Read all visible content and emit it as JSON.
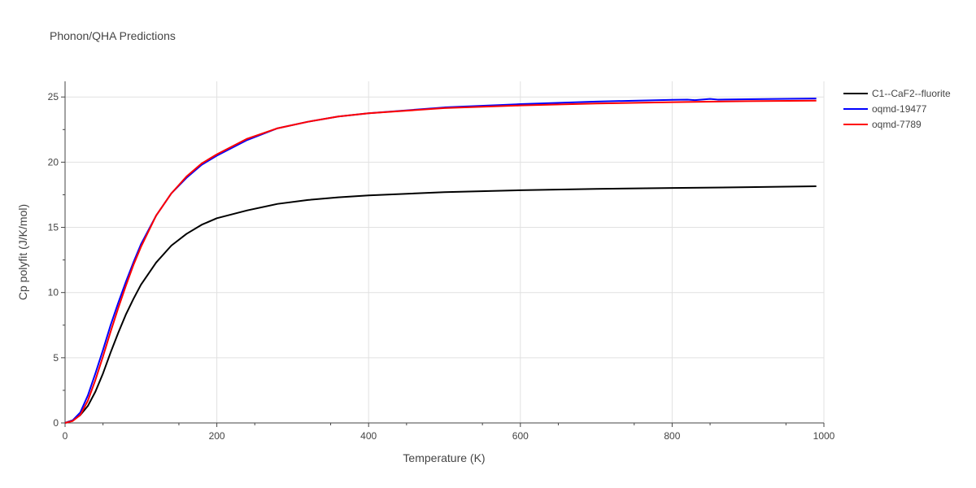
{
  "chart_data": {
    "type": "line",
    "title": "Phonon/QHA Predictions",
    "xlabel": "Temperature (K)",
    "ylabel": "Cp polyfit (J/K/mol)",
    "xlim": [
      0,
      1000
    ],
    "ylim": [
      0,
      26.2
    ],
    "xticks": [
      "0",
      "200",
      "400",
      "600",
      "800",
      "1000"
    ],
    "yticks": [
      "0",
      "5",
      "10",
      "15",
      "20",
      "25"
    ],
    "grid": true,
    "legend_position": "top-right",
    "series": [
      {
        "name": "C1--CaF2--fluorite",
        "color": "#000000",
        "x": [
          0,
          10,
          20,
          30,
          40,
          50,
          60,
          70,
          80,
          90,
          100,
          120,
          140,
          160,
          180,
          200,
          240,
          280,
          320,
          360,
          400,
          500,
          600,
          700,
          800,
          900,
          990
        ],
        "y": [
          0,
          0.2,
          0.6,
          1.3,
          2.4,
          3.8,
          5.4,
          6.9,
          8.3,
          9.5,
          10.6,
          12.3,
          13.6,
          14.5,
          15.2,
          15.7,
          16.3,
          16.8,
          17.1,
          17.3,
          17.45,
          17.7,
          17.85,
          17.95,
          18.02,
          18.08,
          18.15
        ]
      },
      {
        "name": "oqmd-19477",
        "color": "#0000ff",
        "x": [
          0,
          10,
          20,
          30,
          40,
          50,
          60,
          70,
          80,
          90,
          100,
          120,
          140,
          160,
          180,
          200,
          240,
          280,
          320,
          360,
          400,
          500,
          600,
          700,
          800,
          820,
          830,
          850,
          860,
          900,
          990
        ],
        "y": [
          0,
          0.2,
          0.8,
          2.1,
          3.8,
          5.6,
          7.5,
          9.2,
          10.8,
          12.3,
          13.7,
          15.9,
          17.6,
          18.8,
          19.8,
          20.5,
          21.7,
          22.6,
          23.1,
          23.5,
          23.75,
          24.2,
          24.45,
          24.65,
          24.78,
          24.8,
          24.76,
          24.85,
          24.8,
          24.83,
          24.88
        ]
      },
      {
        "name": "oqmd-7789",
        "color": "#ff0000",
        "x": [
          0,
          10,
          20,
          30,
          40,
          50,
          60,
          70,
          80,
          90,
          100,
          120,
          140,
          160,
          180,
          200,
          240,
          280,
          320,
          360,
          400,
          500,
          600,
          700,
          800,
          900,
          990
        ],
        "y": [
          0,
          0.15,
          0.6,
          1.7,
          3.3,
          5.1,
          7.0,
          8.8,
          10.5,
          12.1,
          13.5,
          15.9,
          17.6,
          18.9,
          19.9,
          20.6,
          21.8,
          22.6,
          23.1,
          23.5,
          23.75,
          24.15,
          24.35,
          24.5,
          24.6,
          24.68,
          24.72
        ]
      }
    ]
  }
}
